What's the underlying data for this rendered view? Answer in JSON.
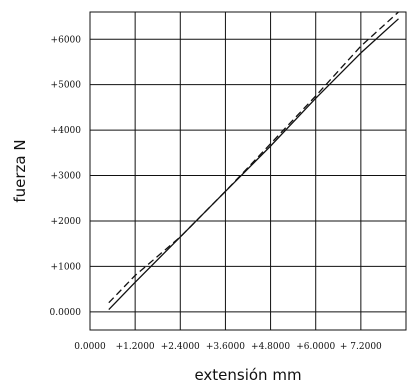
{
  "chart_data": {
    "type": "line",
    "title": "",
    "xlabel": "extensión mm",
    "ylabel": "fuerza N",
    "xlim": [
      0,
      8.4
    ],
    "ylim": [
      -400,
      6600
    ],
    "grid": true,
    "x_tick_values": [
      0,
      1.2,
      2.4,
      3.6,
      4.8,
      6.0,
      7.2
    ],
    "x_tick_labels": [
      "0.0000",
      "+1.2000",
      "+2.4000",
      "+3.6000",
      "+4.8000",
      "+6.0000",
      "+ 7.2000"
    ],
    "y_tick_values": [
      0,
      1000,
      2000,
      3000,
      4000,
      5000,
      6000
    ],
    "y_tick_labels": [
      "0.0000",
      "+1000",
      "+2000",
      "+3000",
      "+4000",
      "+5000",
      "+6000"
    ],
    "series": [
      {
        "style": "solid",
        "color": "#111111",
        "x": [
          0.5,
          1.2,
          2.4,
          3.6,
          4.8,
          6.0,
          7.2,
          8.2
        ],
        "y": [
          50,
          650,
          1650,
          2650,
          3650,
          4700,
          5700,
          6450
        ]
      },
      {
        "style": "dashed",
        "color": "#111111",
        "x": [
          0.5,
          1.2,
          2.4,
          3.6,
          4.8,
          6.0,
          7.2,
          8.2
        ],
        "y": [
          200,
          800,
          1650,
          2650,
          3700,
          4750,
          5850,
          6600
        ]
      }
    ]
  }
}
